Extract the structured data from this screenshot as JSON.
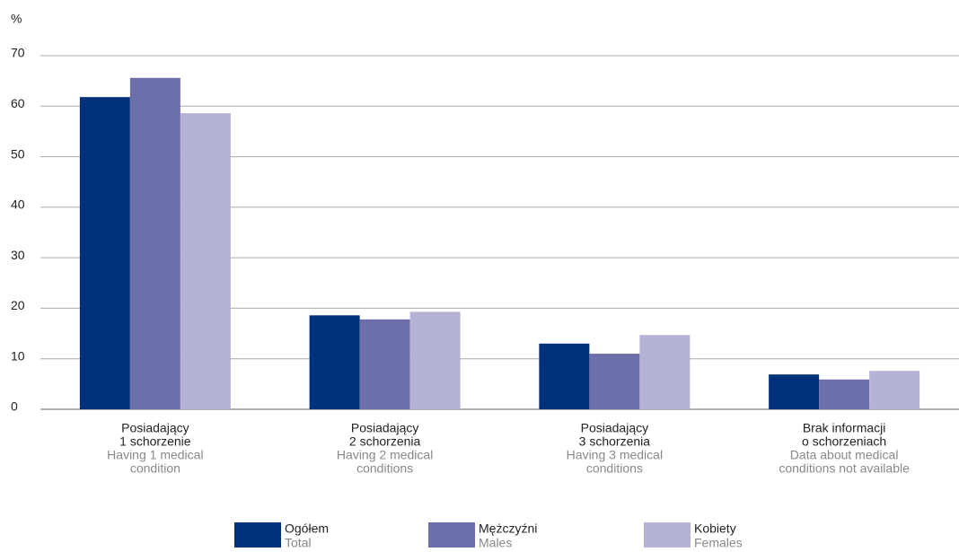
{
  "chart_data": {
    "type": "bar",
    "y_label": "%",
    "categories": [
      [
        "Posiadający",
        "1 schorzenie"
      ],
      [
        "Posiadający",
        "2 schorzenia"
      ],
      [
        "Posiadający",
        "3 schorzenia"
      ],
      [
        "Brak informacji",
        "o schorzeniach"
      ]
    ],
    "categories_en": [
      [
        "Having 1 medical",
        "condition"
      ],
      [
        "Having 2 medical",
        "conditions"
      ],
      [
        "Having 3 medical",
        "conditions"
      ],
      [
        "Data about medical",
        "conditions not available"
      ]
    ],
    "series": [
      {
        "name": "Ogółem",
        "name_en": "Total",
        "color": "#00317a",
        "values": [
          61.8,
          18.6,
          13.0,
          6.9
        ]
      },
      {
        "name": "Mężczyźni",
        "name_en": "Males",
        "color": "#6c6fa9",
        "values": [
          65.6,
          17.8,
          11.0,
          5.9
        ]
      },
      {
        "name": "Kobiety",
        "name_en": "Females",
        "color": "#b5b3d5",
        "values": [
          58.6,
          19.3,
          14.7,
          7.6
        ]
      }
    ],
    "ylim": [
      0,
      70
    ],
    "yticks": [
      0,
      10,
      20,
      30,
      40,
      50,
      60,
      70
    ],
    "grid": true,
    "legend": "bottom"
  }
}
